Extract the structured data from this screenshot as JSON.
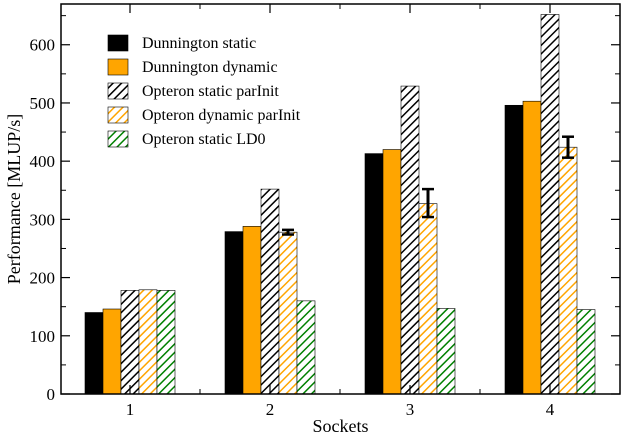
{
  "chart_data": {
    "type": "bar",
    "title": "",
    "xlabel": "Sockets",
    "ylabel": "Performance [MLUP/s]",
    "ylim": [
      0,
      670
    ],
    "yticks": [
      0,
      100,
      200,
      300,
      400,
      500,
      600
    ],
    "categories": [
      "1",
      "2",
      "3",
      "4"
    ],
    "legend_position": "top-left",
    "series": [
      {
        "name": "Dunnington static",
        "values": [
          140,
          279,
          413,
          496
        ],
        "fill": "solid",
        "color": "#000000"
      },
      {
        "name": "Dunnington dynamic",
        "values": [
          146,
          288,
          420,
          503
        ],
        "fill": "solid",
        "color": "#ffa500"
      },
      {
        "name": "Opteron static parInit",
        "values": [
          178,
          352,
          529,
          652
        ],
        "fill": "hatch",
        "color": "#000000"
      },
      {
        "name": "Opteron dynamic parInit",
        "values": [
          179,
          278,
          327,
          424
        ],
        "fill": "hatch",
        "color": "#ffa500",
        "errors": [
          [
            179,
            179
          ],
          [
            274,
            282
          ],
          [
            304,
            352
          ],
          [
            406,
            442
          ]
        ]
      },
      {
        "name": "Opteron static LD0",
        "values": [
          178,
          160,
          147,
          145
        ],
        "fill": "hatch",
        "color": "#008000"
      }
    ]
  }
}
